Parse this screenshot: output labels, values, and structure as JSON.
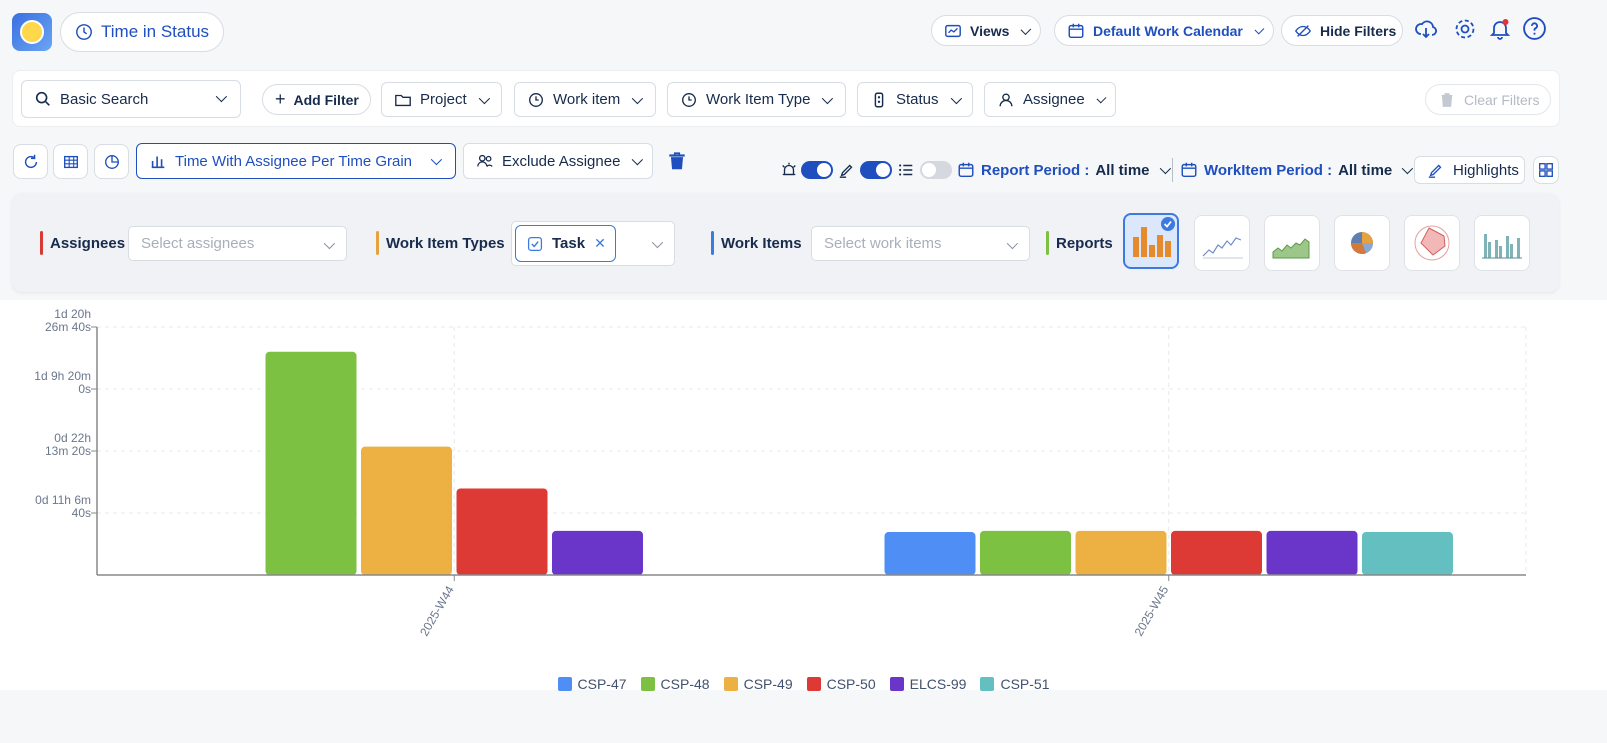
{
  "header": {
    "app_title": "Time in Status",
    "views_label": "Views",
    "calendar_label": "Default Work Calendar",
    "hide_filters_label": "Hide Filters"
  },
  "filters": {
    "search_label": "Basic Search",
    "add_filter_label": "Add Filter",
    "project_label": "Project",
    "work_item_label": "Work item",
    "work_item_type_label": "Work Item Type",
    "status_label": "Status",
    "assignee_label": "Assignee",
    "clear_filters_label": "Clear Filters"
  },
  "toolbar": {
    "report_select": "Time With Assignee Per Time Grain",
    "exclude_label": "Exclude Assignee",
    "report_period_label": "Report Period :",
    "report_period_value": "All time",
    "workitem_period_label": "WorkItem Period :",
    "workitem_period_value": "All time",
    "highlights_label": "Highlights"
  },
  "panel": {
    "assignees_label": "Assignees",
    "assignees_placeholder": "Select assignees",
    "types_label": "Work Item Types",
    "type_chip": "Task",
    "work_items_label": "Work Items",
    "work_items_placeholder": "Select work items",
    "reports_label": "Reports"
  },
  "colors": {
    "accent": "#1f4fbf",
    "CSP-47": "#4f8ef5",
    "CSP-48": "#7cc142",
    "CSP-49": "#ecb043",
    "CSP-50": "#dd3a36",
    "ELCS-99": "#6a35c9",
    "CSP-51": "#63bfc0"
  },
  "chart_data": {
    "type": "bar",
    "categories": [
      "2025-W44",
      "2025-W45"
    ],
    "y_unit": "hours",
    "ylim": [
      0,
      44.44
    ],
    "y_ticks": [
      {
        "value": 11.11,
        "label": [
          "0d 11h 6m",
          "40s"
        ]
      },
      {
        "value": 22.22,
        "label": [
          "0d 22h",
          "13m 20s"
        ]
      },
      {
        "value": 33.33,
        "label": [
          "1d 9h 20m",
          "0s"
        ]
      },
      {
        "value": 44.44,
        "label": [
          "1d 20h",
          "26m 40s"
        ]
      }
    ],
    "series": [
      {
        "name": "CSP-47",
        "values": [
          null,
          7.7
        ]
      },
      {
        "name": "CSP-48",
        "values": [
          40.0,
          7.9
        ]
      },
      {
        "name": "CSP-49",
        "values": [
          23.0,
          7.9
        ]
      },
      {
        "name": "CSP-50",
        "values": [
          15.5,
          7.9
        ]
      },
      {
        "name": "ELCS-99",
        "values": [
          7.9,
          7.9
        ]
      },
      {
        "name": "CSP-51",
        "values": [
          null,
          7.7
        ]
      }
    ],
    "grid": true,
    "legend_position": "bottom"
  }
}
